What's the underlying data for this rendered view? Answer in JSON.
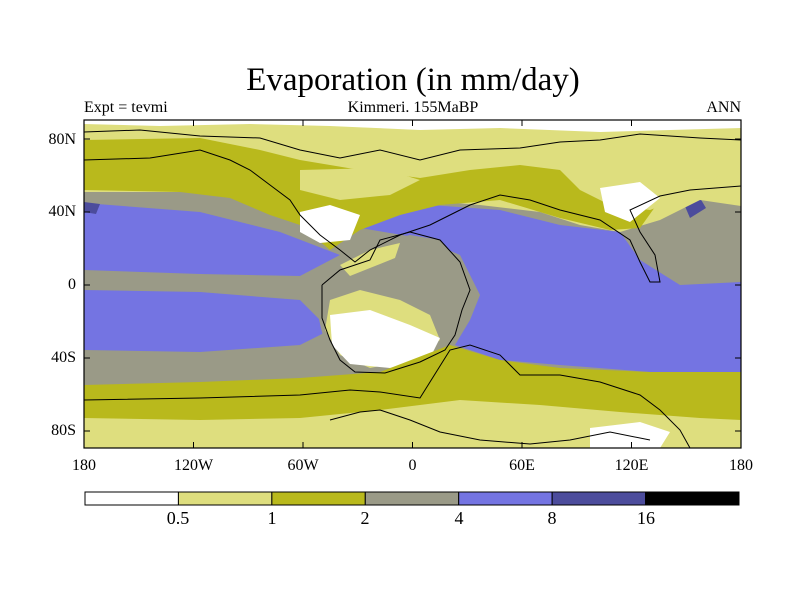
{
  "title": "Evaporation (in mm/day)",
  "subtitle_left": "Expt = tevmi",
  "subtitle_center": "Kimmeri. 155MaBP",
  "subtitle_right": "ANN",
  "x_ticks": [
    "180",
    "120W",
    "60W",
    "0",
    "60E",
    "120E",
    "180"
  ],
  "y_ticks": [
    "80N",
    "40N",
    "0",
    "40S",
    "80S"
  ],
  "colorbar": {
    "levels": [
      "0.5",
      "1",
      "2",
      "4",
      "8",
      "16"
    ],
    "colors": [
      "#ffffff",
      "#dede7e",
      "#b9b91c",
      "#9a9a87",
      "#7474e2",
      "#4c4c9c",
      "#000000"
    ]
  },
  "map_colors": {
    "ocean_high": "#7474e2",
    "ocean_mid": "#9a9a87",
    "land_dry": "#ffffff",
    "land_low": "#dede7e",
    "land_mid": "#b9b91c",
    "max_band": "#4c4c9c"
  }
}
